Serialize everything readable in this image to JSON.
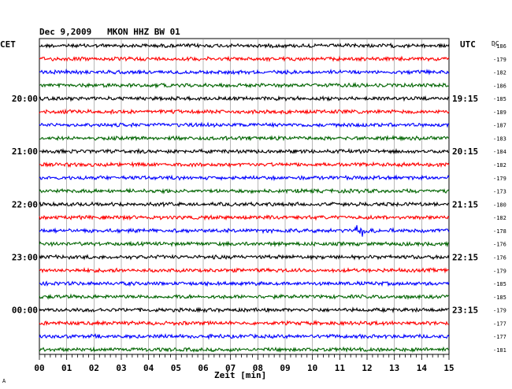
{
  "chart_data": {
    "type": "line",
    "title": "Dec 9,2009   MKON HHZ BW 01",
    "left_timezone": "CET",
    "right_timezone": "UTC",
    "dc_label": "DC",
    "xlabel": "Zeit [min]",
    "xlim": [
      0,
      15
    ],
    "x_ticks": [
      "00",
      "01",
      "02",
      "03",
      "04",
      "05",
      "06",
      "07",
      "08",
      "09",
      "10",
      "11",
      "12",
      "13",
      "14",
      "15"
    ],
    "grid": true,
    "trace_colors": [
      "#000000",
      "#ff0000",
      "#0000ff",
      "#006400"
    ],
    "traces": 24,
    "left_hour_labels": [
      {
        "trace": 4,
        "label": "20:00"
      },
      {
        "trace": 8,
        "label": "21:00"
      },
      {
        "trace": 12,
        "label": "22:00"
      },
      {
        "trace": 16,
        "label": "23:00"
      },
      {
        "trace": 20,
        "label": "00:00"
      }
    ],
    "right_hour_labels": [
      {
        "trace": 4,
        "label": "19:15"
      },
      {
        "trace": 8,
        "label": "20:15"
      },
      {
        "trace": 12,
        "label": "21:15"
      },
      {
        "trace": 16,
        "label": "22:15"
      },
      {
        "trace": 20,
        "label": "23:15"
      }
    ],
    "dc_offsets": [
      "-186",
      "-179",
      "-182",
      "-186",
      "-185",
      "-189",
      "-187",
      "-183",
      "-184",
      "-182",
      "-179",
      "-173",
      "-180",
      "-182",
      "-178",
      "-176",
      "-176",
      "-179",
      "-185",
      "-185",
      "-179",
      "-177",
      "-177",
      "-181"
    ],
    "event": {
      "trace": 14,
      "start_min": 11.55,
      "end_min": 12.9
    }
  },
  "footer_mark": "A"
}
